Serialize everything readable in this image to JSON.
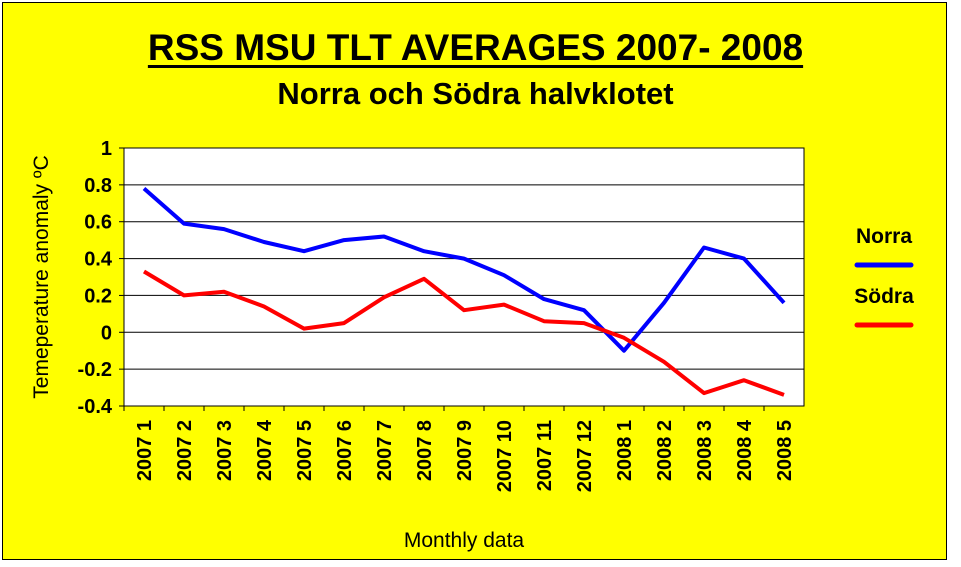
{
  "chart_data": {
    "type": "line",
    "title": "RSS MSU TLT AVERAGES  2007- 2008",
    "subtitle": "Norra och Södra halvklotet",
    "xlabel": "Monthly data",
    "ylabel": "Temeperature anomaly ºC",
    "ylim": [
      -0.4,
      1
    ],
    "yticks": [
      "1",
      "0.8",
      "0.6",
      "0.4",
      "0.2",
      "0",
      "-0.2",
      "-0.4"
    ],
    "grid": true,
    "legend_position": "right",
    "categories": [
      "2007 1",
      "2007 2",
      "2007 3",
      "2007 4",
      "2007 5",
      "2007 6",
      "2007 7",
      "2007 8",
      "2007 9",
      "2007 10",
      "2007 11",
      "2007 12",
      "2008 1",
      "2008 2",
      "2008 3",
      "2008 4",
      "2008 5"
    ],
    "series": [
      {
        "name": "Norra",
        "color": "#0000ff",
        "values": [
          0.78,
          0.59,
          0.56,
          0.49,
          0.44,
          0.5,
          0.52,
          0.44,
          0.4,
          0.31,
          0.18,
          0.12,
          -0.1,
          0.16,
          0.46,
          0.4,
          0.16
        ]
      },
      {
        "name": "Södra",
        "color": "#ff0000",
        "values": [
          0.33,
          0.2,
          0.22,
          0.14,
          0.02,
          0.05,
          0.19,
          0.29,
          0.12,
          0.15,
          0.06,
          0.05,
          -0.03,
          -0.16,
          -0.33,
          -0.26,
          -0.34
        ]
      }
    ]
  },
  "colors": {
    "background": "#ffff00",
    "plot_area": "#ffffff"
  }
}
